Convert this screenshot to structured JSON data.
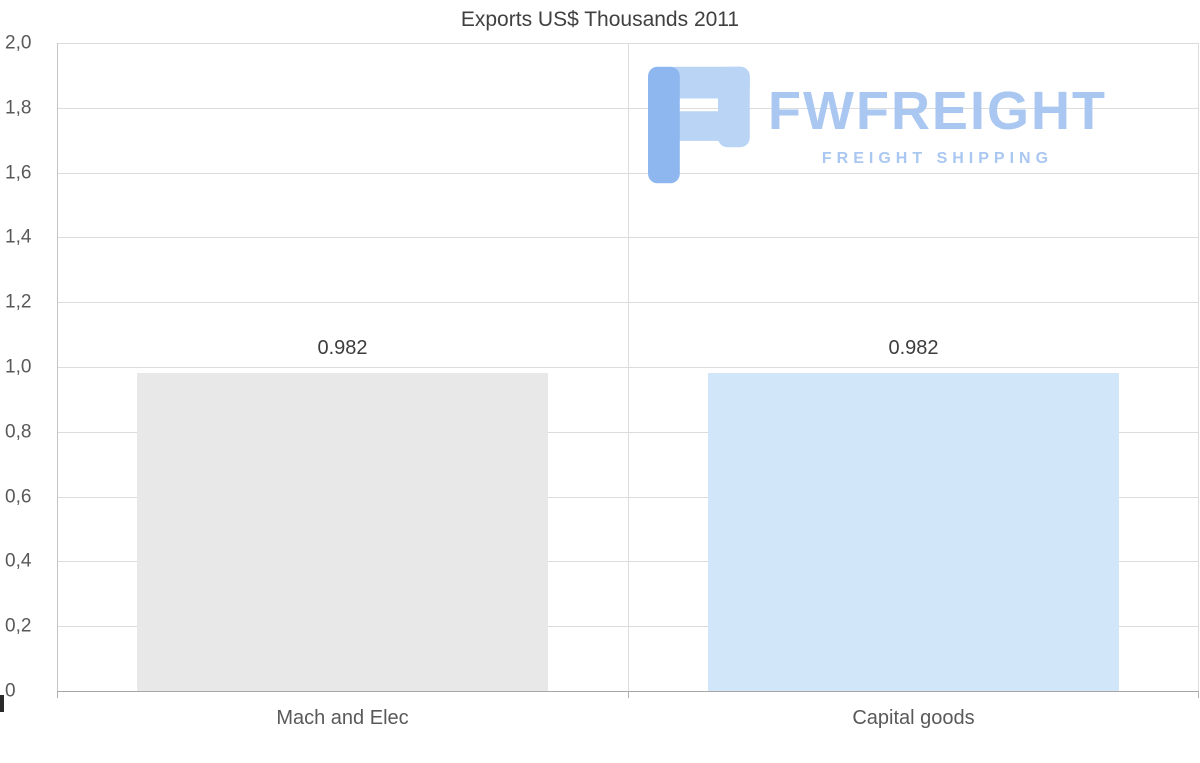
{
  "title": "Exports US$ Thousands 2011",
  "watermark": {
    "brand": "FWFREIGHT",
    "tagline": "FREIGHT SHIPPING",
    "text_color": "#a9c7f1",
    "icon_color_light": "#b9d4f5",
    "icon_color_dark": "#8fb7ef"
  },
  "chart_data": {
    "type": "bar",
    "title": "Exports US$ Thousands 2011",
    "categories": [
      "Mach and Elec",
      "Capital goods"
    ],
    "values": [
      0.982,
      0.982
    ],
    "value_labels": [
      "0.982",
      "0.982"
    ],
    "bar_colors": [
      "#e8e8e8",
      "#d2e6f9"
    ],
    "xlabel": "",
    "ylabel": "",
    "ylim": [
      0,
      2
    ],
    "yticks": [
      {
        "value": 2.0,
        "label": "2,0"
      },
      {
        "value": 1.8,
        "label": "1,8"
      },
      {
        "value": 1.6,
        "label": "1,6"
      },
      {
        "value": 1.4,
        "label": "1,4"
      },
      {
        "value": 1.2,
        "label": "1,2"
      },
      {
        "value": 1.0,
        "label": "1,0"
      },
      {
        "value": 0.8,
        "label": "0,8"
      },
      {
        "value": 0.6,
        "label": "0,6"
      },
      {
        "value": 0.4,
        "label": "0,4"
      },
      {
        "value": 0.2,
        "label": "0,2"
      },
      {
        "value": 0.0,
        "label": "0"
      }
    ],
    "grid": true,
    "legend": false,
    "grid_color": "#dcdcdc",
    "baseline_color": "#a6a6a6",
    "axis_line_color": "#c4c4c4"
  }
}
